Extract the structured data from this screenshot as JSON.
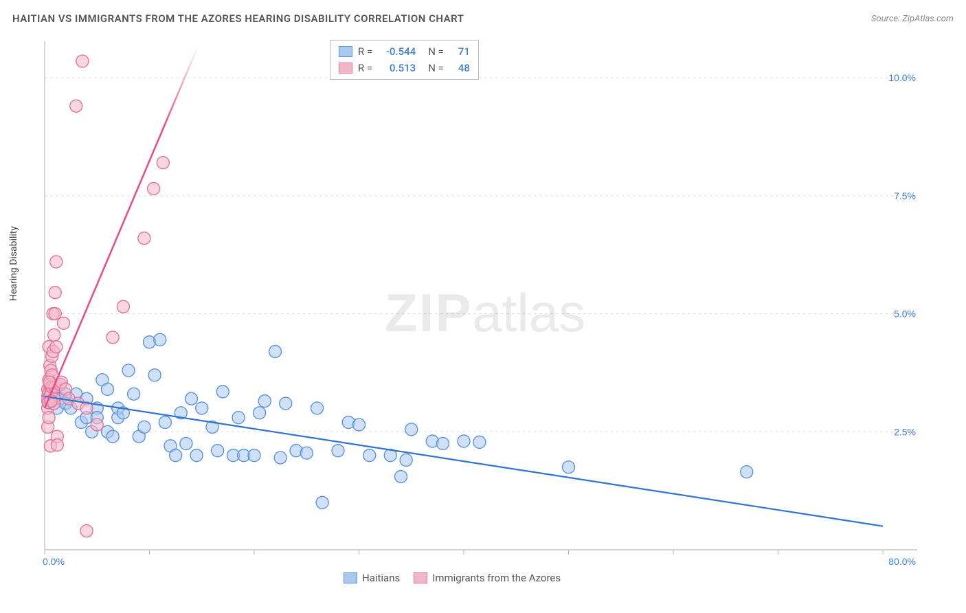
{
  "title": "HAITIAN VS IMMIGRANTS FROM THE AZORES HEARING DISABILITY CORRELATION CHART",
  "source": "Source: ZipAtlas.com",
  "y_axis_label": "Hearing Disability",
  "watermark": {
    "prefix": "ZIP",
    "suffix": "atlas"
  },
  "chart": {
    "type": "scatter",
    "background_color": "#ffffff",
    "grid_color": "#dddddd",
    "axis_line_color": "#bbbbbb",
    "xlim": [
      0,
      80
    ],
    "ylim": [
      0,
      10.7
    ],
    "x_ticks": [
      0,
      10,
      20,
      30,
      40,
      50,
      60,
      70,
      80
    ],
    "y_gridlines": [
      2.5,
      5.0,
      7.5,
      10.0
    ],
    "x_tick_labels": {
      "0": "0.0%",
      "80": "80.0%"
    },
    "y_tick_labels": {
      "2.5": "2.5%",
      "5.0": "5.0%",
      "7.5": "7.5%",
      "10.0": "10.0%"
    },
    "series": [
      {
        "name": "Haitians",
        "color_fill": "#a9c9f0",
        "color_stroke": "#5a94db",
        "marker_radius": 9,
        "fill_opacity": 0.55,
        "trend": {
          "x1": 0,
          "y1": 3.25,
          "x2": 80,
          "y2": 0.5,
          "color": "#2f74d0",
          "width": 2.2
        },
        "R": "-0.544",
        "N": "71",
        "points": [
          [
            0.3,
            3.2
          ],
          [
            0.5,
            3.4
          ],
          [
            0.5,
            3.1
          ],
          [
            0.7,
            3.15
          ],
          [
            0.8,
            3.4
          ],
          [
            1.0,
            3.3
          ],
          [
            1.2,
            3.0
          ],
          [
            1.5,
            3.5
          ],
          [
            1.5,
            3.2
          ],
          [
            2.0,
            3.3
          ],
          [
            2.0,
            3.1
          ],
          [
            2.5,
            3.0
          ],
          [
            3.0,
            3.3
          ],
          [
            3.5,
            2.7
          ],
          [
            4.0,
            2.8
          ],
          [
            4.0,
            3.2
          ],
          [
            4.5,
            2.5
          ],
          [
            5.0,
            3.0
          ],
          [
            5.0,
            2.8
          ],
          [
            5.5,
            3.6
          ],
          [
            6.0,
            3.4
          ],
          [
            6.0,
            2.5
          ],
          [
            6.5,
            2.4
          ],
          [
            7.0,
            2.8
          ],
          [
            7.0,
            3.0
          ],
          [
            7.5,
            2.9
          ],
          [
            8.0,
            3.8
          ],
          [
            8.5,
            3.3
          ],
          [
            9.0,
            2.4
          ],
          [
            9.5,
            2.6
          ],
          [
            10.0,
            4.4
          ],
          [
            10.5,
            3.7
          ],
          [
            11.0,
            4.45
          ],
          [
            11.5,
            2.7
          ],
          [
            12.0,
            2.2
          ],
          [
            12.5,
            2.0
          ],
          [
            13.0,
            2.9
          ],
          [
            13.5,
            2.25
          ],
          [
            14.0,
            3.2
          ],
          [
            14.5,
            2.0
          ],
          [
            15.0,
            3.0
          ],
          [
            16.0,
            2.6
          ],
          [
            16.5,
            2.1
          ],
          [
            17.0,
            3.35
          ],
          [
            18.0,
            2.0
          ],
          [
            18.5,
            2.8
          ],
          [
            19.0,
            2.0
          ],
          [
            20.0,
            2.0
          ],
          [
            20.5,
            2.9
          ],
          [
            21.0,
            3.15
          ],
          [
            22.0,
            4.2
          ],
          [
            22.5,
            1.95
          ],
          [
            23.0,
            3.1
          ],
          [
            24.0,
            2.1
          ],
          [
            25.0,
            2.05
          ],
          [
            26.0,
            3.0
          ],
          [
            26.5,
            1.0
          ],
          [
            28.0,
            2.1
          ],
          [
            29.0,
            2.7
          ],
          [
            30.0,
            2.65
          ],
          [
            31.0,
            2.0
          ],
          [
            33.0,
            2.0
          ],
          [
            34.5,
            1.9
          ],
          [
            35.0,
            2.55
          ],
          [
            37.0,
            2.3
          ],
          [
            38.0,
            2.25
          ],
          [
            40.0,
            2.3
          ],
          [
            41.5,
            2.28
          ],
          [
            50.0,
            1.75
          ],
          [
            67.0,
            1.65
          ],
          [
            34.0,
            1.55
          ]
        ]
      },
      {
        "name": "Immigrants from the Azores",
        "color_fill": "#f3b6c8",
        "color_stroke": "#e37399",
        "marker_radius": 9,
        "fill_opacity": 0.55,
        "trend": {
          "x1": 0,
          "y1": 3.0,
          "x2": 14.7,
          "y2": 10.7,
          "color": "#e94b86",
          "width": 2.5,
          "fade_end": true
        },
        "R": "0.513",
        "N": "48",
        "points": [
          [
            0.2,
            3.2
          ],
          [
            0.3,
            3.0
          ],
          [
            0.3,
            3.4
          ],
          [
            0.3,
            2.6
          ],
          [
            0.35,
            3.3
          ],
          [
            0.4,
            3.6
          ],
          [
            0.4,
            4.3
          ],
          [
            0.4,
            2.8
          ],
          [
            0.5,
            3.5
          ],
          [
            0.5,
            3.25
          ],
          [
            0.5,
            3.9
          ],
          [
            0.55,
            2.2
          ],
          [
            0.6,
            3.3
          ],
          [
            0.6,
            3.8
          ],
          [
            0.7,
            3.45
          ],
          [
            0.7,
            4.1
          ],
          [
            0.7,
            3.7
          ],
          [
            0.8,
            4.2
          ],
          [
            0.8,
            5.0
          ],
          [
            0.9,
            3.2
          ],
          [
            0.9,
            4.55
          ],
          [
            1.0,
            3.45
          ],
          [
            1.0,
            5.0
          ],
          [
            1.0,
            5.45
          ],
          [
            1.1,
            4.3
          ],
          [
            1.1,
            6.1
          ],
          [
            1.2,
            2.4
          ],
          [
            1.2,
            2.22
          ],
          [
            1.5,
            3.5
          ],
          [
            1.6,
            3.55
          ],
          [
            1.8,
            4.8
          ],
          [
            2.0,
            3.4
          ],
          [
            2.3,
            3.2
          ],
          [
            3.6,
            10.35
          ],
          [
            3.0,
            9.4
          ],
          [
            3.2,
            3.1
          ],
          [
            4.0,
            3.0
          ],
          [
            5.0,
            2.65
          ],
          [
            6.5,
            4.5
          ],
          [
            7.5,
            5.15
          ],
          [
            9.5,
            6.6
          ],
          [
            10.4,
            7.65
          ],
          [
            11.3,
            8.2
          ],
          [
            0.35,
            3.12
          ],
          [
            0.45,
            3.55
          ],
          [
            0.9,
            3.1
          ],
          [
            4.0,
            0.4
          ],
          [
            0.6,
            3.15
          ]
        ]
      }
    ]
  },
  "stats_legend": {
    "rows": [
      {
        "swatch_fill": "#a9c9f0",
        "swatch_stroke": "#5a94db",
        "R_label": "R =",
        "R": "-0.544",
        "N_label": "N =",
        "N": "71"
      },
      {
        "swatch_fill": "#f3b6c8",
        "swatch_stroke": "#e37399",
        "R_label": "R =",
        "R": "0.513",
        "N_label": "N =",
        "N": "48"
      }
    ]
  },
  "bottom_legend": {
    "items": [
      {
        "swatch_fill": "#a9c9f0",
        "swatch_stroke": "#5a94db",
        "label": "Haitians"
      },
      {
        "swatch_fill": "#f3b6c8",
        "swatch_stroke": "#e37399",
        "label": "Immigrants from the Azores"
      }
    ]
  }
}
